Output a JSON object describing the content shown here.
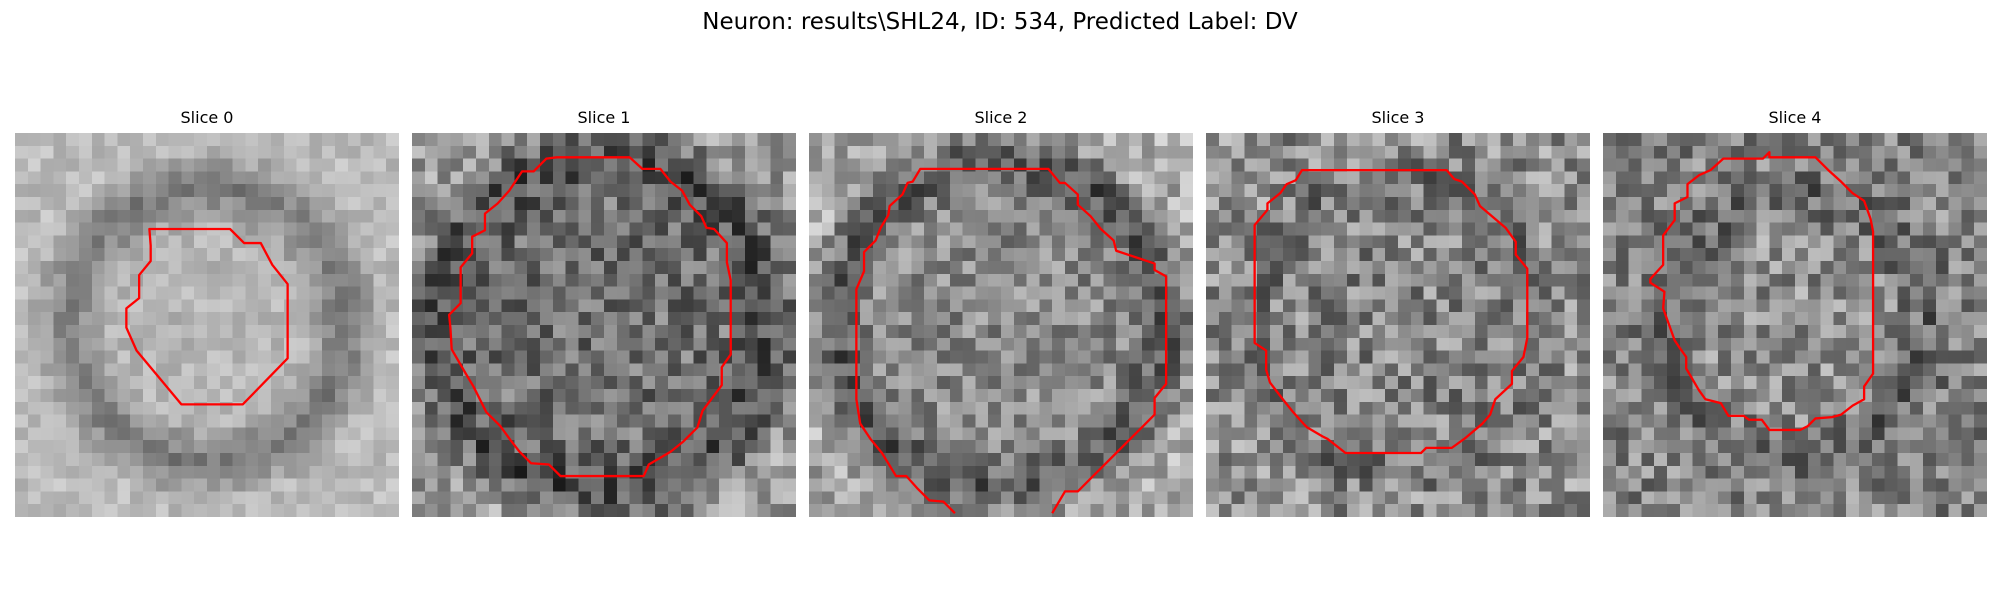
{
  "figure": {
    "title": "Neuron: results\\SHL24, ID: 534, Predicted Label: DV"
  },
  "panels": [
    {
      "title": "Slice 0",
      "seed": 11,
      "center_gray": 182,
      "ring_gray": 118,
      "outer_gray": 188,
      "noise": 22,
      "ring_radius": 0.36,
      "ring_width": 0.11
    },
    {
      "title": "Slice 1",
      "seed": 23,
      "center_gray": 112,
      "ring_gray": 75,
      "outer_gray": 158,
      "noise": 52,
      "ring_radius": 0.44,
      "ring_width": 0.12
    },
    {
      "title": "Slice 2",
      "seed": 37,
      "center_gray": 138,
      "ring_gray": 82,
      "outer_gray": 170,
      "noise": 48,
      "ring_radius": 0.43,
      "ring_width": 0.1
    },
    {
      "title": "Slice 3",
      "seed": 41,
      "center_gray": 132,
      "ring_gray": 112,
      "outer_gray": 142,
      "noise": 58,
      "ring_radius": 0.38,
      "ring_width": 0.08
    },
    {
      "title": "Slice 4",
      "seed": 53,
      "center_gray": 142,
      "ring_gray": 98,
      "outer_gray": 132,
      "noise": 55,
      "ring_radius": 0.34,
      "ring_width": 0.1
    }
  ],
  "colors": {
    "contour": "#ff0000",
    "background": "#ffffff"
  }
}
